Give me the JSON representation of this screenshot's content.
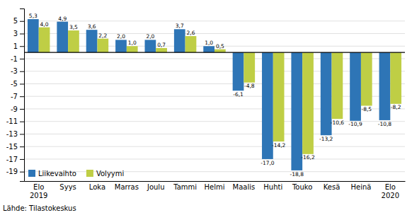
{
  "chart_data": {
    "type": "bar",
    "categories": [
      "Elo\n2019",
      "Syys",
      "Loka",
      "Marras",
      "Joulu",
      "Tammi",
      "Helmi",
      "Maalis",
      "Huhti",
      "Touko",
      "Kesä",
      "Heinä",
      "Elo\n2020"
    ],
    "series": [
      {
        "name": "Liikevaihto",
        "color": "#2E75B6",
        "values": [
          5.3,
          4.9,
          3.6,
          2.0,
          2.0,
          3.7,
          1.0,
          -6.1,
          -17.0,
          -18.8,
          -13.2,
          -10.9,
          -10.8
        ],
        "value_labels": [
          "5,3",
          "4,9",
          "3,6",
          "2,0",
          "2,0",
          "3,7",
          "1,0",
          "-6,1",
          "-17,0",
          "-18,8",
          "-13,2",
          "-10,9",
          "-10,8"
        ]
      },
      {
        "name": "Volyymi",
        "color": "#BFCE45",
        "values": [
          4.0,
          3.5,
          2.2,
          1.0,
          0.7,
          2.6,
          0.5,
          -4.8,
          -14.2,
          -16.2,
          -10.6,
          -8.5,
          -8.2
        ],
        "value_labels": [
          "4,0",
          "3,5",
          "2,2",
          "1,0",
          "0,7",
          "2,6",
          "0,5",
          "-4,8",
          "-14,2",
          "-16,2",
          "-10,6",
          "-8,5",
          "-8,2"
        ]
      }
    ],
    "ylim": [
      -20.5,
      7.0
    ],
    "yticks": [
      -19,
      -17,
      -15,
      -13,
      -11,
      -9,
      -7,
      -5,
      -3,
      -1,
      1,
      3,
      5
    ],
    "grid": true,
    "legend": "lower left",
    "data_labels": true,
    "annotations": [
      "Lähde: Tilastokeskus"
    ]
  }
}
